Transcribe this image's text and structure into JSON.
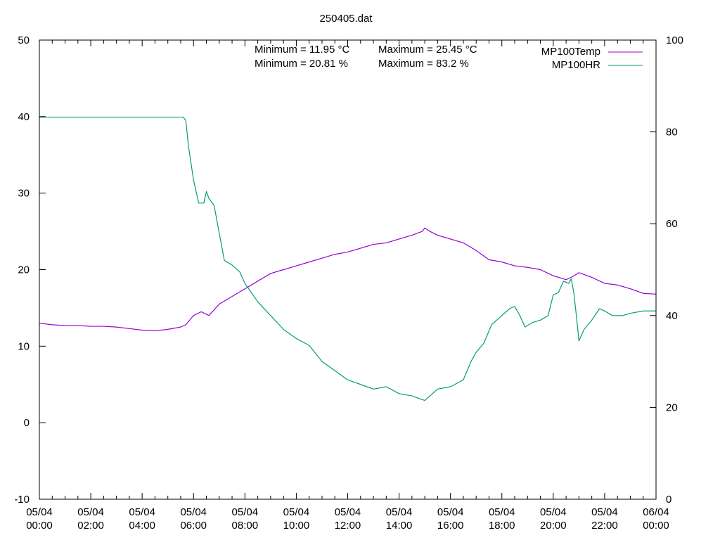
{
  "chart_data": {
    "type": "line",
    "title": "250405.dat",
    "annotations": [
      "Minimum = 11.95 °C",
      "Maximum = 25.45 °C",
      "Minimum = 20.81 %",
      "Maximum = 83.2 %"
    ],
    "x_range_hours": [
      0,
      24
    ],
    "x_ticks": [
      {
        "hour": 0,
        "date": "05/04",
        "time": "00:00"
      },
      {
        "hour": 2,
        "date": "05/04",
        "time": "02:00"
      },
      {
        "hour": 4,
        "date": "05/04",
        "time": "04:00"
      },
      {
        "hour": 6,
        "date": "05/04",
        "time": "06:00"
      },
      {
        "hour": 8,
        "date": "05/04",
        "time": "08:00"
      },
      {
        "hour": 10,
        "date": "05/04",
        "time": "10:00"
      },
      {
        "hour": 12,
        "date": "05/04",
        "time": "12:00"
      },
      {
        "hour": 14,
        "date": "05/04",
        "time": "14:00"
      },
      {
        "hour": 16,
        "date": "05/04",
        "time": "16:00"
      },
      {
        "hour": 18,
        "date": "05/04",
        "time": "18:00"
      },
      {
        "hour": 20,
        "date": "05/04",
        "time": "20:00"
      },
      {
        "hour": 22,
        "date": "05/04",
        "time": "22:00"
      },
      {
        "hour": 24,
        "date": "06/04",
        "time": "00:00"
      }
    ],
    "y_left": {
      "range": [
        -10,
        50
      ],
      "ticks": [
        "-10",
        "0",
        "10",
        "20",
        "30",
        "40",
        "50"
      ]
    },
    "y_right": {
      "range": [
        0,
        100
      ],
      "ticks": [
        "0",
        "20",
        "40",
        "60",
        "80",
        "100"
      ]
    },
    "grid": false,
    "legend": "top-right",
    "series": [
      {
        "name": "MP100Temp",
        "axis": "left",
        "color": "#9400d3",
        "points": [
          [
            0,
            13.0
          ],
          [
            0.5,
            12.8
          ],
          [
            1,
            12.7
          ],
          [
            1.5,
            12.7
          ],
          [
            2,
            12.6
          ],
          [
            2.5,
            12.6
          ],
          [
            3,
            12.5
          ],
          [
            3.5,
            12.3
          ],
          [
            4,
            12.1
          ],
          [
            4.5,
            12.0
          ],
          [
            5,
            12.2
          ],
          [
            5.5,
            12.5
          ],
          [
            5.7,
            12.8
          ],
          [
            6,
            14.0
          ],
          [
            6.3,
            14.5
          ],
          [
            6.6,
            14.0
          ],
          [
            7,
            15.5
          ],
          [
            7.5,
            16.5
          ],
          [
            8,
            17.5
          ],
          [
            8.5,
            18.5
          ],
          [
            9,
            19.5
          ],
          [
            9.5,
            20.0
          ],
          [
            10,
            20.5
          ],
          [
            10.5,
            21.0
          ],
          [
            11,
            21.5
          ],
          [
            11.5,
            22.0
          ],
          [
            12,
            22.3
          ],
          [
            12.5,
            22.8
          ],
          [
            13,
            23.3
          ],
          [
            13.5,
            23.5
          ],
          [
            14,
            24.0
          ],
          [
            14.5,
            24.5
          ],
          [
            14.9,
            25.0
          ],
          [
            15,
            25.45
          ],
          [
            15.2,
            25.0
          ],
          [
            15.5,
            24.5
          ],
          [
            16,
            24.0
          ],
          [
            16.5,
            23.5
          ],
          [
            17,
            22.5
          ],
          [
            17.5,
            21.3
          ],
          [
            18,
            21.0
          ],
          [
            18.5,
            20.5
          ],
          [
            19,
            20.3
          ],
          [
            19.5,
            20.0
          ],
          [
            20,
            19.2
          ],
          [
            20.5,
            18.7
          ],
          [
            20.7,
            19.0
          ],
          [
            21,
            19.6
          ],
          [
            21.5,
            19.0
          ],
          [
            22,
            18.2
          ],
          [
            22.5,
            18.0
          ],
          [
            23,
            17.5
          ],
          [
            23.5,
            16.9
          ],
          [
            24,
            16.8
          ]
        ]
      },
      {
        "name": "MP100HR",
        "axis": "right",
        "color": "#009e73",
        "points": [
          [
            0,
            83.2
          ],
          [
            5.6,
            83.2
          ],
          [
            5.7,
            82.5
          ],
          [
            5.8,
            77.0
          ],
          [
            6.0,
            69.5
          ],
          [
            6.2,
            64.5
          ],
          [
            6.4,
            64.5
          ],
          [
            6.5,
            67.0
          ],
          [
            6.6,
            65.5
          ],
          [
            6.8,
            64.0
          ],
          [
            7.0,
            58.0
          ],
          [
            7.2,
            52.0
          ],
          [
            7.5,
            51.0
          ],
          [
            7.8,
            49.5
          ],
          [
            8.0,
            47.0
          ],
          [
            8.5,
            43.0
          ],
          [
            9.0,
            40.0
          ],
          [
            9.5,
            37.0
          ],
          [
            10.0,
            35.0
          ],
          [
            10.5,
            33.5
          ],
          [
            11.0,
            30.0
          ],
          [
            11.5,
            28.0
          ],
          [
            12.0,
            26.0
          ],
          [
            12.5,
            25.0
          ],
          [
            13.0,
            24.0
          ],
          [
            13.5,
            24.5
          ],
          [
            14.0,
            23.0
          ],
          [
            14.5,
            22.5
          ],
          [
            15.0,
            21.5
          ],
          [
            15.5,
            24.0
          ],
          [
            16.0,
            24.5
          ],
          [
            16.5,
            26.0
          ],
          [
            16.8,
            30.0
          ],
          [
            17.0,
            32.0
          ],
          [
            17.3,
            34.0
          ],
          [
            17.6,
            38.0
          ],
          [
            18.0,
            40.0
          ],
          [
            18.3,
            41.5
          ],
          [
            18.5,
            42.0
          ],
          [
            18.7,
            40.0
          ],
          [
            18.9,
            37.5
          ],
          [
            19.2,
            38.5
          ],
          [
            19.5,
            39.0
          ],
          [
            19.8,
            40.0
          ],
          [
            20.0,
            44.5
          ],
          [
            20.2,
            45.0
          ],
          [
            20.4,
            47.5
          ],
          [
            20.6,
            47.0
          ],
          [
            20.7,
            48.0
          ],
          [
            20.8,
            45.0
          ],
          [
            20.9,
            40.0
          ],
          [
            21.0,
            34.5
          ],
          [
            21.2,
            37.0
          ],
          [
            21.5,
            39.0
          ],
          [
            21.8,
            41.5
          ],
          [
            22.0,
            41.0
          ],
          [
            22.3,
            40.0
          ],
          [
            22.7,
            40.0
          ],
          [
            23.0,
            40.5
          ],
          [
            23.5,
            41.0
          ],
          [
            24.0,
            41.0
          ]
        ]
      }
    ]
  }
}
